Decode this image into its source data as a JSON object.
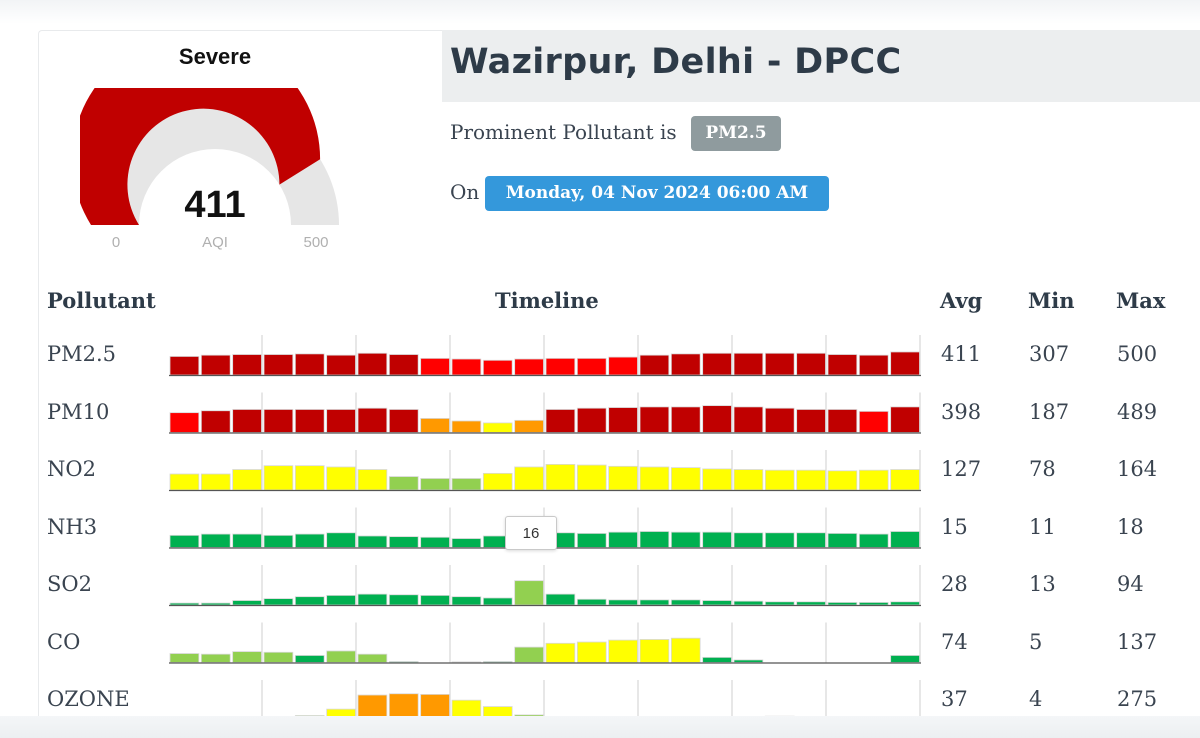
{
  "gauge": {
    "category": "Severe",
    "value": "411",
    "min": "0",
    "max": "500",
    "unit": "AQI",
    "fraction": 0.822,
    "fill_color": "#c00000",
    "track_color": "#e6e6e6"
  },
  "station": {
    "title": "Wazirpur, Delhi - DPCC",
    "prominent_label": "Prominent Pollutant is",
    "prominent_value": "PM2.5",
    "on_label": "On",
    "datetime": "Monday, 04 Nov 2024 06:00 AM"
  },
  "table": {
    "headers": {
      "pollutant": "Pollutant",
      "timeline": "Timeline",
      "avg": "Avg",
      "min": "Min",
      "max": "Max"
    },
    "tooltip": "16",
    "rows": [
      {
        "name": "PM2.5",
        "avg": "411",
        "min": "307",
        "max": "500",
        "values": [
          0.58,
          0.62,
          0.64,
          0.64,
          0.66,
          0.62,
          0.68,
          0.64,
          0.52,
          0.5,
          0.46,
          0.5,
          0.52,
          0.52,
          0.56,
          0.62,
          0.66,
          0.68,
          0.68,
          0.68,
          0.68,
          0.64,
          0.62,
          0.72
        ],
        "colors": [
          "#c00000",
          "#c00000",
          "#c00000",
          "#c00000",
          "#c00000",
          "#c00000",
          "#c00000",
          "#c00000",
          "#ff0000",
          "#ff0000",
          "#ff0000",
          "#ff0000",
          "#ff0000",
          "#ff0000",
          "#ff0000",
          "#c00000",
          "#c00000",
          "#c00000",
          "#c00000",
          "#c00000",
          "#c00000",
          "#c00000",
          "#c00000",
          "#c00000"
        ]
      },
      {
        "name": "PM10",
        "avg": "398",
        "min": "187",
        "max": "489",
        "values": [
          0.62,
          0.68,
          0.72,
          0.72,
          0.72,
          0.72,
          0.76,
          0.72,
          0.44,
          0.36,
          0.3,
          0.38,
          0.72,
          0.76,
          0.78,
          0.8,
          0.8,
          0.84,
          0.8,
          0.76,
          0.72,
          0.72,
          0.66,
          0.8
        ],
        "colors": [
          "#ff0000",
          "#c00000",
          "#c00000",
          "#c00000",
          "#c00000",
          "#c00000",
          "#c00000",
          "#c00000",
          "#ff9900",
          "#ff9900",
          "#ffff00",
          "#ff9900",
          "#c00000",
          "#c00000",
          "#c00000",
          "#c00000",
          "#c00000",
          "#c00000",
          "#c00000",
          "#c00000",
          "#c00000",
          "#c00000",
          "#ff0000",
          "#c00000"
        ]
      },
      {
        "name": "NO2",
        "avg": "127",
        "min": "78",
        "max": "164",
        "values": [
          0.5,
          0.5,
          0.64,
          0.76,
          0.76,
          0.72,
          0.64,
          0.42,
          0.36,
          0.36,
          0.52,
          0.72,
          0.8,
          0.78,
          0.74,
          0.72,
          0.7,
          0.66,
          0.64,
          0.62,
          0.62,
          0.6,
          0.62,
          0.64
        ],
        "colors": [
          "#ffff00",
          "#ffff00",
          "#ffff00",
          "#ffff00",
          "#ffff00",
          "#ffff00",
          "#ffff00",
          "#92d050",
          "#92d050",
          "#92d050",
          "#ffff00",
          "#ffff00",
          "#ffff00",
          "#ffff00",
          "#ffff00",
          "#ffff00",
          "#ffff00",
          "#ffff00",
          "#ffff00",
          "#ffff00",
          "#ffff00",
          "#ffff00",
          "#ffff00",
          "#ffff00"
        ]
      },
      {
        "name": "NH3",
        "avg": "15",
        "min": "11",
        "max": "18",
        "values": [
          0.38,
          0.42,
          0.42,
          0.38,
          0.42,
          0.46,
          0.36,
          0.34,
          0.32,
          0.28,
          0.36,
          0.4,
          0.46,
          0.44,
          0.48,
          0.5,
          0.48,
          0.48,
          0.46,
          0.46,
          0.46,
          0.44,
          0.42,
          0.5
        ],
        "colors": [
          "#00b050",
          "#00b050",
          "#00b050",
          "#00b050",
          "#00b050",
          "#00b050",
          "#00b050",
          "#00b050",
          "#00b050",
          "#00b050",
          "#00b050",
          "#00b050",
          "#00b050",
          "#00b050",
          "#00b050",
          "#00b050",
          "#00b050",
          "#00b050",
          "#00b050",
          "#00b050",
          "#00b050",
          "#00b050",
          "#00b050",
          "#00b050"
        ]
      },
      {
        "name": "SO2",
        "avg": "28",
        "min": "13",
        "max": "94",
        "values": [
          0.06,
          0.06,
          0.14,
          0.2,
          0.26,
          0.3,
          0.34,
          0.32,
          0.3,
          0.26,
          0.22,
          0.76,
          0.34,
          0.18,
          0.16,
          0.16,
          0.16,
          0.14,
          0.12,
          0.1,
          0.1,
          0.08,
          0.08,
          0.1
        ],
        "colors": [
          "#00b050",
          "#00b050",
          "#00b050",
          "#00b050",
          "#00b050",
          "#00b050",
          "#00b050",
          "#00b050",
          "#00b050",
          "#00b050",
          "#00b050",
          "#92d050",
          "#00b050",
          "#00b050",
          "#00b050",
          "#00b050",
          "#00b050",
          "#00b050",
          "#00b050",
          "#00b050",
          "#00b050",
          "#00b050",
          "#00b050",
          "#00b050"
        ]
      },
      {
        "name": "CO",
        "avg": "74",
        "min": "5",
        "max": "137",
        "values": [
          0.28,
          0.26,
          0.34,
          0.32,
          0.22,
          0.36,
          0.26,
          0.03,
          0.0,
          0.02,
          0.03,
          0.48,
          0.6,
          0.64,
          0.7,
          0.72,
          0.76,
          0.16,
          0.08,
          0.0,
          0.0,
          0.0,
          0.0,
          0.22
        ],
        "colors": [
          "#92d050",
          "#92d050",
          "#92d050",
          "#92d050",
          "#00b050",
          "#92d050",
          "#92d050",
          "#00b050",
          "#00b050",
          "#00b050",
          "#00b050",
          "#92d050",
          "#ffff00",
          "#ffff00",
          "#ffff00",
          "#ffff00",
          "#ffff00",
          "#00b050",
          "#00b050",
          "#00b050",
          "#00b050",
          "#00b050",
          "#00b050",
          "#00b050"
        ]
      },
      {
        "name": "OZONE",
        "avg": "37",
        "min": "4",
        "max": "275",
        "values": [
          0.06,
          0.06,
          0.06,
          0.02,
          0.14,
          0.34,
          0.78,
          0.82,
          0.8,
          0.62,
          0.42,
          0.16,
          0.04,
          0.06,
          0.08,
          0.02,
          0.02,
          0.02,
          0.1,
          0.12,
          0.1,
          0.08,
          0.06,
          0.1
        ],
        "colors": [
          "#00b050",
          "#00b050",
          "#00b050",
          "#00b050",
          "#92d050",
          "#ffff00",
          "#ff9900",
          "#ff9900",
          "#ff9900",
          "#ffff00",
          "#ffff00",
          "#92d050",
          "#00b050",
          "#00b050",
          "#00b050",
          "#00b050",
          "#00b050",
          "#00b050",
          "#92d050",
          "#92d050",
          "#92d050",
          "#92d050",
          "#00b050",
          "#92d050"
        ]
      }
    ]
  }
}
